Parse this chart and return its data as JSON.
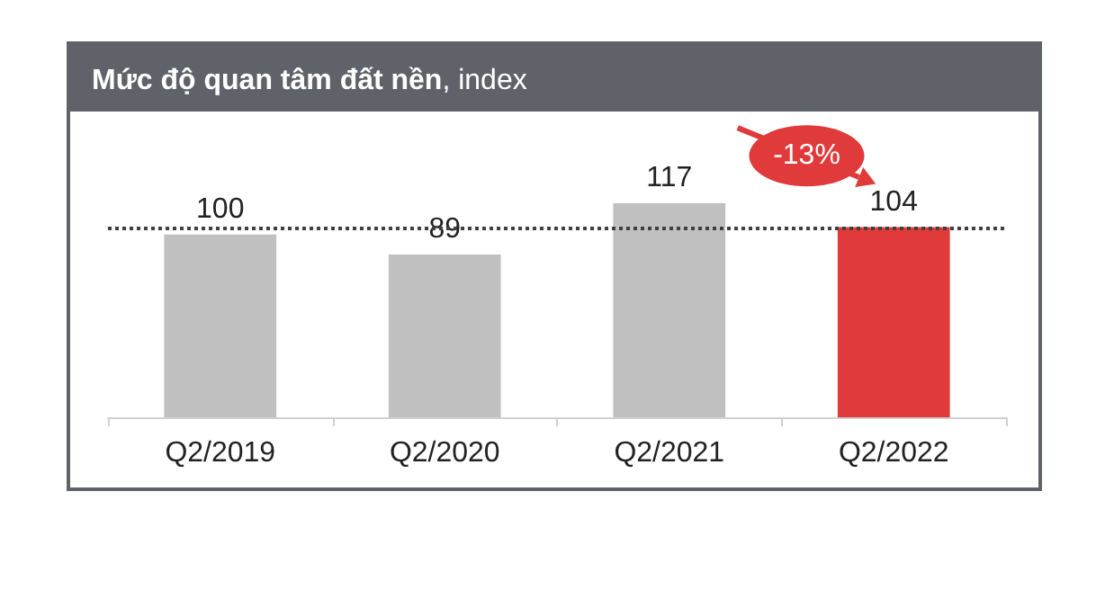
{
  "chart_data": {
    "type": "bar",
    "title": "Mức độ quan tâm đất nền, index",
    "categories": [
      "Q2/2019",
      "Q2/2020",
      "Q2/2021",
      "Q2/2022"
    ],
    "values": [
      100,
      89,
      117,
      104
    ],
    "colors": [
      "#c0c0c0",
      "#c0c0c0",
      "#c0c0c0",
      "#e03a3a"
    ],
    "data_labels": true,
    "ref_lines": [
      {
        "axis": "y",
        "value": 104,
        "line_style": "dotted",
        "color": "#404040"
      }
    ],
    "annotations": [
      "-13%"
    ],
    "tick_labels": "x",
    "grid": false
  }
}
